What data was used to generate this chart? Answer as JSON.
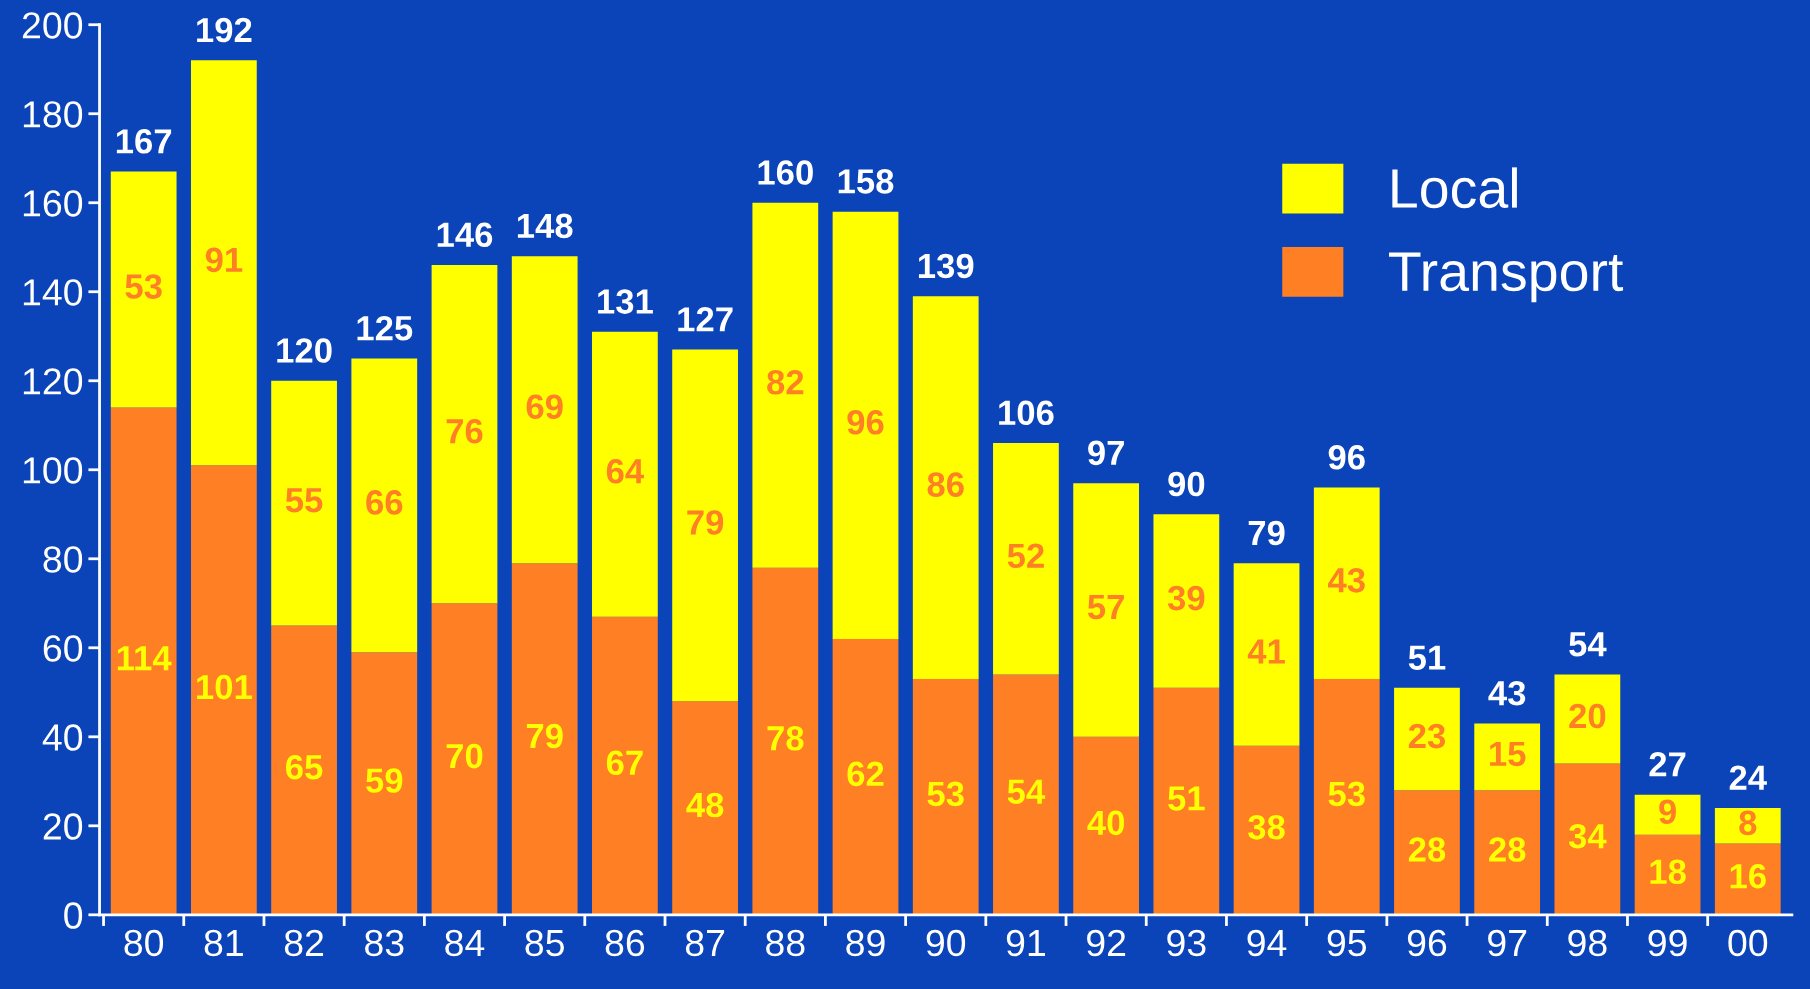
{
  "chart_data": {
    "type": "bar",
    "stacked": true,
    "categories": [
      "80",
      "81",
      "82",
      "83",
      "84",
      "85",
      "86",
      "87",
      "88",
      "89",
      "90",
      "91",
      "92",
      "93",
      "94",
      "95",
      "96",
      "97",
      "98",
      "99",
      "00"
    ],
    "series": [
      {
        "name": "Transport",
        "color": "#ff7f24",
        "values": [
          114,
          101,
          65,
          59,
          70,
          79,
          67,
          48,
          78,
          62,
          53,
          54,
          40,
          51,
          38,
          53,
          28,
          28,
          34,
          18,
          16
        ]
      },
      {
        "name": "Local",
        "color": "#ffff00",
        "values": [
          53,
          91,
          55,
          66,
          76,
          69,
          64,
          79,
          82,
          96,
          86,
          52,
          57,
          39,
          41,
          43,
          23,
          15,
          20,
          9,
          8
        ]
      }
    ],
    "totals": [
      "167",
      "192",
      "120",
      "125",
      "146",
      "148",
      "131",
      "127",
      "160",
      "158",
      "139",
      "106",
      "97",
      "90",
      "79",
      "96",
      "51",
      "43",
      "54",
      "27",
      "24"
    ],
    "ylim": [
      0,
      200
    ],
    "yticks": [
      0,
      20,
      40,
      60,
      80,
      100,
      120,
      140,
      160,
      180,
      200
    ],
    "data_labels": true,
    "legend": "top right",
    "grid": false
  }
}
